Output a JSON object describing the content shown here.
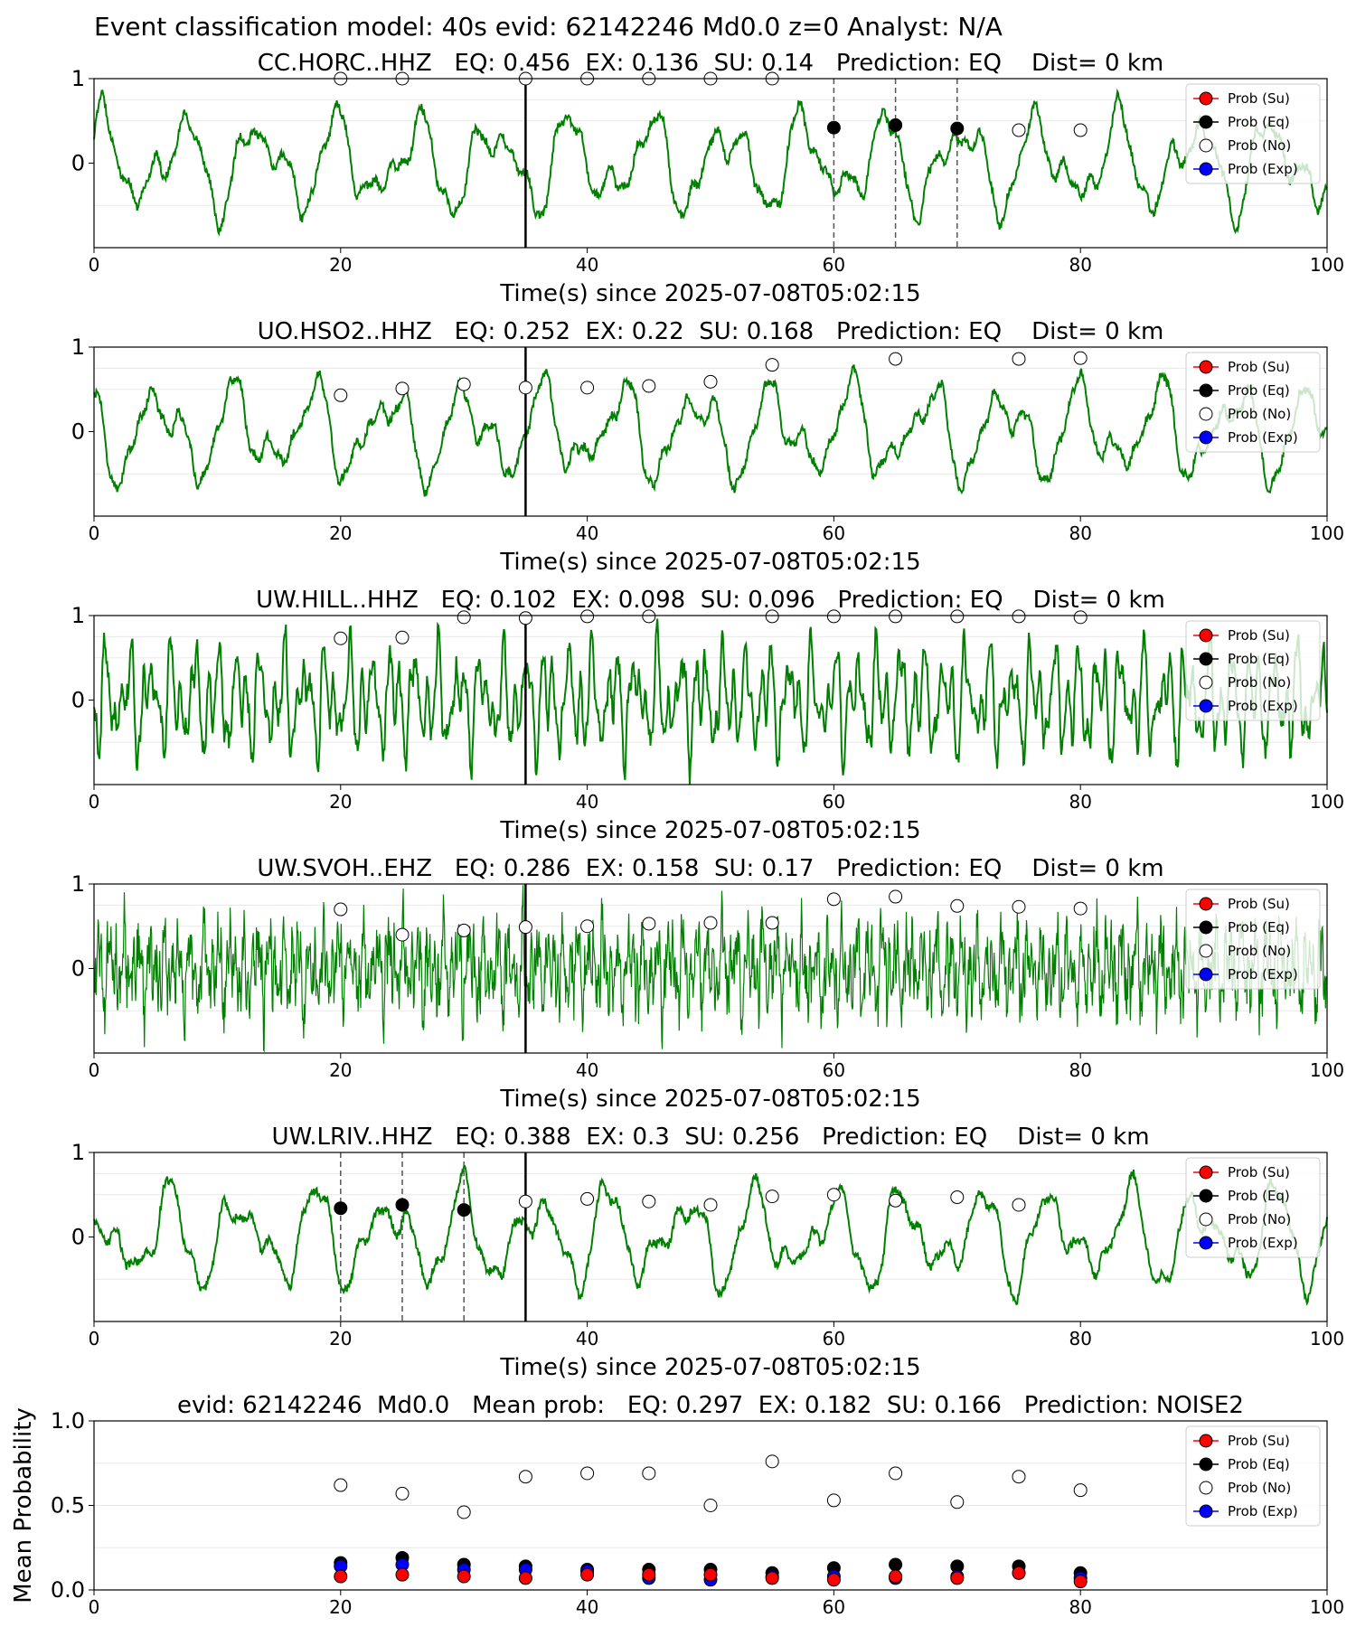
{
  "suptitle": "Event classification model: 40s evid: 62142246 Md0.0 z=0 Analyst: N/A",
  "legend_labels": [
    "Prob (Su)",
    "Prob (Eq)",
    "Prob (No)",
    "Prob (Exp)"
  ],
  "colors": {
    "waveform": "#008000",
    "su": "#ff0000",
    "eq": "#000000",
    "no": "#ffffff",
    "exp": "#0000ff"
  },
  "chart_data": [
    {
      "type": "line",
      "station": "CC.HORC..HHZ",
      "title": "CC.HORC..HHZ   EQ: 0.456  EX: 0.136  SU: 0.14   Prediction: EQ    Dist= 0 km",
      "xlabel": "Time(s) since 2025-07-08T05:02:15",
      "xlim": [
        0,
        100
      ],
      "ylim": [
        -1,
        1
      ],
      "xticks": [
        0,
        20,
        40,
        60,
        80,
        100
      ],
      "yticks": [
        0,
        1
      ],
      "xtick_labels": [
        "0",
        "20",
        "40",
        "60",
        "80",
        "100"
      ],
      "ytick_labels": [
        "0",
        "1"
      ],
      "event_line": 35,
      "dashed_lines": [
        60,
        65,
        70
      ],
      "eq_points": [
        [
          60,
          0.42
        ],
        [
          65,
          0.45
        ],
        [
          70,
          0.41
        ]
      ],
      "no_points": [
        [
          20,
          1.0
        ],
        [
          25,
          1.0
        ],
        [
          35,
          1.0
        ],
        [
          40,
          1.0
        ],
        [
          45,
          1.0
        ],
        [
          50,
          1.0
        ],
        [
          55,
          1.0
        ],
        [
          75,
          0.39
        ],
        [
          80,
          0.39
        ]
      ],
      "waveform_character": "low",
      "legend": "upper right"
    },
    {
      "type": "line",
      "station": "UO.HSO2..HHZ",
      "title": "UO.HSO2..HHZ   EQ: 0.252  EX: 0.22  SU: 0.168   Prediction: EQ    Dist= 0 km",
      "xlabel": "Time(s) since 2025-07-08T05:02:15",
      "xlim": [
        0,
        100
      ],
      "ylim": [
        -1,
        1
      ],
      "xticks": [
        0,
        20,
        40,
        60,
        80,
        100
      ],
      "yticks": [
        0,
        1
      ],
      "xtick_labels": [
        "0",
        "20",
        "40",
        "60",
        "80",
        "100"
      ],
      "ytick_labels": [
        "0",
        "1"
      ],
      "event_line": 35,
      "dashed_lines": [],
      "eq_points": [],
      "no_points": [
        [
          20,
          0.43
        ],
        [
          25,
          0.51
        ],
        [
          30,
          0.56
        ],
        [
          35,
          0.52
        ],
        [
          40,
          0.52
        ],
        [
          45,
          0.54
        ],
        [
          50,
          0.59
        ],
        [
          55,
          0.79
        ],
        [
          65,
          0.86
        ],
        [
          75,
          0.86
        ],
        [
          80,
          0.87
        ]
      ],
      "waveform_character": "low",
      "legend": "upper right"
    },
    {
      "type": "line",
      "station": "UW.HILL..HHZ",
      "title": "UW.HILL..HHZ   EQ: 0.102  EX: 0.098  SU: 0.096   Prediction: EQ    Dist= 0 km",
      "xlabel": "Time(s) since 2025-07-08T05:02:15",
      "xlim": [
        0,
        100
      ],
      "ylim": [
        -1,
        1
      ],
      "xticks": [
        0,
        20,
        40,
        60,
        80,
        100
      ],
      "yticks": [
        0,
        1
      ],
      "xtick_labels": [
        "0",
        "20",
        "40",
        "60",
        "80",
        "100"
      ],
      "ytick_labels": [
        "0",
        "1"
      ],
      "event_line": 35,
      "dashed_lines": [],
      "eq_points": [],
      "no_points": [
        [
          20,
          0.73
        ],
        [
          25,
          0.74
        ],
        [
          30,
          0.98
        ],
        [
          35,
          0.97
        ],
        [
          40,
          0.99
        ],
        [
          45,
          0.99
        ],
        [
          55,
          0.99
        ],
        [
          60,
          0.99
        ],
        [
          65,
          0.99
        ],
        [
          70,
          0.99
        ],
        [
          75,
          0.99
        ],
        [
          80,
          0.98
        ]
      ],
      "waveform_character": "mid",
      "legend": "upper right"
    },
    {
      "type": "line",
      "station": "UW.SVOH..EHZ",
      "title": "UW.SVOH..EHZ   EQ: 0.286  EX: 0.158  SU: 0.17   Prediction: EQ    Dist= 0 km",
      "xlabel": "Time(s) since 2025-07-08T05:02:15",
      "xlim": [
        0,
        100
      ],
      "ylim": [
        -1,
        1
      ],
      "xticks": [
        0,
        20,
        40,
        60,
        80,
        100
      ],
      "yticks": [
        0,
        1
      ],
      "xtick_labels": [
        "0",
        "20",
        "40",
        "60",
        "80",
        "100"
      ],
      "ytick_labels": [
        "0",
        "1"
      ],
      "event_line": 35,
      "dashed_lines": [],
      "eq_points": [],
      "no_points": [
        [
          20,
          0.7
        ],
        [
          25,
          0.4
        ],
        [
          30,
          0.45
        ],
        [
          35,
          0.49
        ],
        [
          40,
          0.5
        ],
        [
          45,
          0.53
        ],
        [
          50,
          0.54
        ],
        [
          55,
          0.54
        ],
        [
          60,
          0.82
        ],
        [
          65,
          0.85
        ],
        [
          70,
          0.74
        ],
        [
          75,
          0.73
        ],
        [
          80,
          0.71
        ]
      ],
      "waveform_character": "high",
      "legend": "upper right"
    },
    {
      "type": "line",
      "station": "UW.LRIV..HHZ",
      "title": "UW.LRIV..HHZ   EQ: 0.388  EX: 0.3  SU: 0.256   Prediction: EQ    Dist= 0 km",
      "xlabel": "Time(s) since 2025-07-08T05:02:15",
      "xlim": [
        0,
        100
      ],
      "ylim": [
        -1,
        1
      ],
      "xticks": [
        0,
        20,
        40,
        60,
        80,
        100
      ],
      "yticks": [
        0,
        1
      ],
      "xtick_labels": [
        "0",
        "20",
        "40",
        "60",
        "80",
        "100"
      ],
      "ytick_labels": [
        "0",
        "1"
      ],
      "event_line": 35,
      "dashed_lines": [
        20,
        25,
        30
      ],
      "eq_points": [
        [
          20,
          0.34
        ],
        [
          25,
          0.38
        ],
        [
          30,
          0.32
        ]
      ],
      "no_points": [
        [
          35,
          0.42
        ],
        [
          40,
          0.45
        ],
        [
          45,
          0.42
        ],
        [
          50,
          0.38
        ],
        [
          55,
          0.48
        ],
        [
          60,
          0.5
        ],
        [
          65,
          0.43
        ],
        [
          70,
          0.47
        ],
        [
          75,
          0.38
        ]
      ],
      "waveform_character": "low",
      "legend": "upper right"
    },
    {
      "type": "scatter",
      "title": "evid: 62142246  Md0.0   Mean prob:   EQ: 0.297  EX: 0.182  SU: 0.166   Prediction: NOISE2",
      "ylabel": "Mean Probability",
      "xlim": [
        0,
        100
      ],
      "ylim": [
        0,
        1
      ],
      "xticks": [
        0,
        20,
        40,
        60,
        80,
        100
      ],
      "yticks": [
        0,
        0.5,
        1
      ],
      "xtick_labels": [
        "0",
        "20",
        "40",
        "60",
        "80",
        "100"
      ],
      "ytick_labels": [
        "0.0",
        "0.5",
        "1.0"
      ],
      "x": [
        20,
        25,
        30,
        35,
        40,
        45,
        50,
        55,
        60,
        65,
        70,
        75,
        80
      ],
      "series": [
        {
          "name": "Prob (Su)",
          "values": [
            0.08,
            0.09,
            0.08,
            0.07,
            0.09,
            0.09,
            0.09,
            0.07,
            0.06,
            0.08,
            0.07,
            0.1,
            0.05
          ]
        },
        {
          "name": "Prob (Eq)",
          "values": [
            0.16,
            0.19,
            0.15,
            0.14,
            0.12,
            0.12,
            0.12,
            0.1,
            0.13,
            0.15,
            0.14,
            0.14,
            0.1
          ]
        },
        {
          "name": "Prob (No)",
          "values": [
            0.62,
            0.57,
            0.46,
            0.67,
            0.69,
            0.69,
            0.5,
            0.76,
            0.53,
            0.69,
            0.52,
            0.67,
            0.59
          ]
        },
        {
          "name": "Prob (Exp)",
          "values": [
            0.14,
            0.15,
            0.12,
            0.12,
            0.11,
            0.07,
            0.06,
            0.08,
            0.08,
            0.07,
            0.08,
            0.1,
            0.07
          ]
        }
      ],
      "legend": "upper right"
    }
  ]
}
